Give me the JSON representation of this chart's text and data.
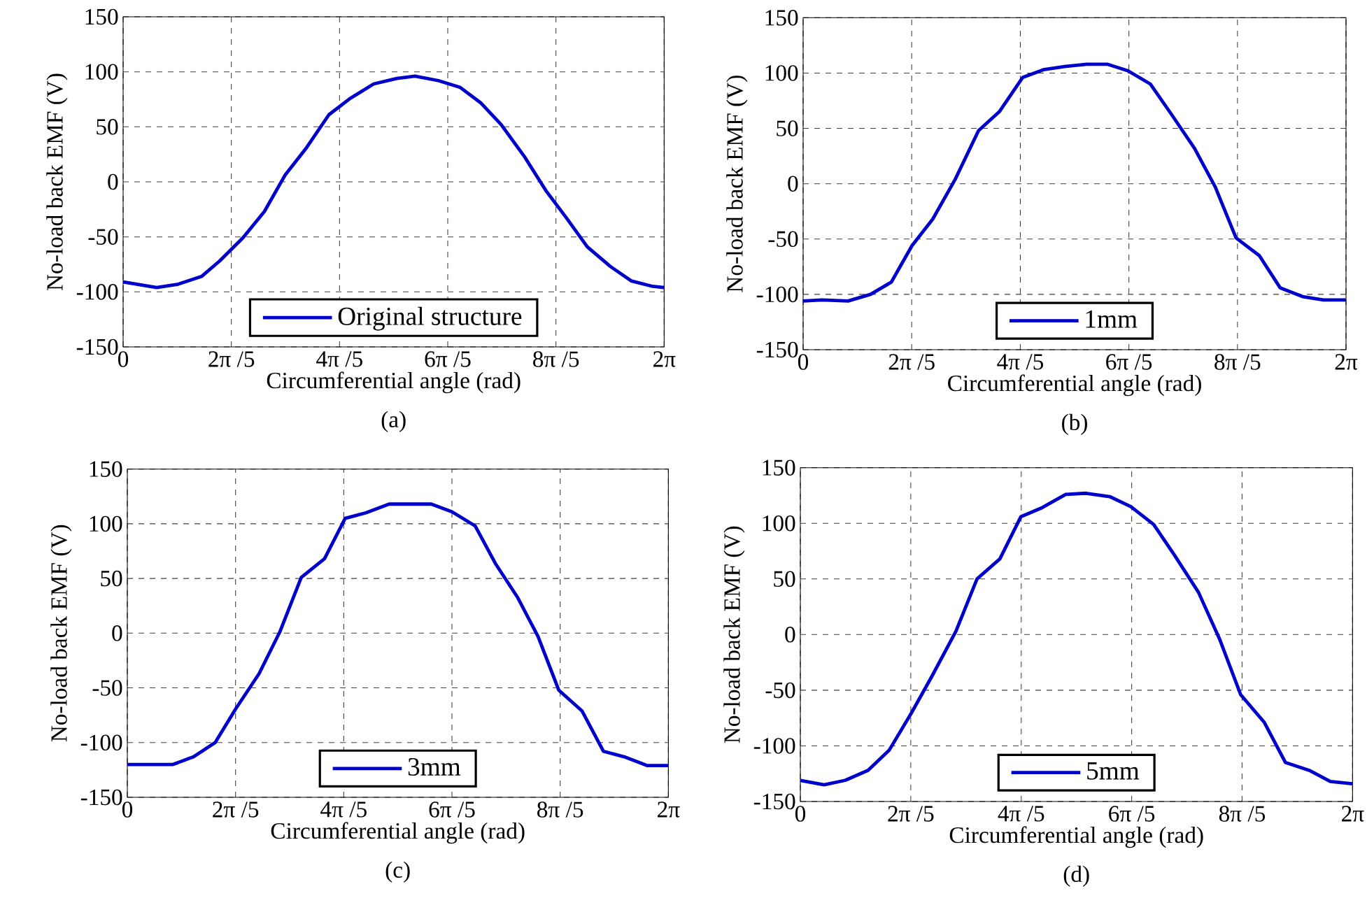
{
  "chart_data": [
    {
      "type": "line",
      "xlabel": "Circumferential angle (rad)",
      "ylabel": "No-load back EMF (V)",
      "annotations": [
        "(a)"
      ],
      "xlim": [
        0,
        6.2832
      ],
      "ylim": [
        -150,
        150
      ],
      "xticks": [
        0,
        {
          "value": 1.2566,
          "label": "2π /5"
        },
        {
          "value": 2.5133,
          "label": "4π /5"
        },
        {
          "value": 3.7699,
          "label": "6π /5"
        },
        {
          "value": 5.0265,
          "label": "8π /5"
        },
        {
          "value": 6.2832,
          "label": "2π"
        }
      ],
      "yticks": [
        -150,
        -100,
        -50,
        0,
        50,
        100,
        150
      ],
      "grid": true,
      "legend": "bottom",
      "x": [
        0,
        0.39,
        0.64,
        0.91,
        1.12,
        1.39,
        1.64,
        1.88,
        2.12,
        2.39,
        2.64,
        2.91,
        3.18,
        3.39,
        3.66,
        3.91,
        4.15,
        4.39,
        4.66,
        4.91,
        5.15,
        5.39,
        5.66,
        5.9,
        6.15,
        6.28
      ],
      "series": [
        {
          "name": "Original structure",
          "color": "#0000cc",
          "values": [
            -91,
            -96,
            -93,
            -86,
            -72,
            -51,
            -27,
            6,
            30,
            61,
            76,
            89,
            94,
            96,
            92,
            86,
            72,
            52,
            23,
            -8,
            -33,
            -59,
            -77,
            -90,
            -95,
            -96
          ]
        }
      ]
    },
    {
      "type": "line",
      "xlabel": "Circumferential angle (rad)",
      "ylabel": "No-load back EMF (V)",
      "annotations": [
        "(b)"
      ],
      "xlim": [
        0,
        6.2832
      ],
      "ylim": [
        -150,
        150
      ],
      "xticks": [
        0,
        {
          "value": 1.2566,
          "label": "2π /5"
        },
        {
          "value": 2.5133,
          "label": "4π /5"
        },
        {
          "value": 3.7699,
          "label": "6π /5"
        },
        {
          "value": 5.0265,
          "label": "8π /5"
        },
        {
          "value": 6.2832,
          "label": "2π"
        }
      ],
      "yticks": [
        -150,
        -100,
        -50,
        0,
        50,
        100,
        150
      ],
      "grid": true,
      "legend": "bottom",
      "x": [
        0,
        0.22,
        0.52,
        0.78,
        1.02,
        1.26,
        1.5,
        1.76,
        2.03,
        2.27,
        2.54,
        2.78,
        3.04,
        3.28,
        3.52,
        3.76,
        4.02,
        4.26,
        4.53,
        4.77,
        5.01,
        5.28,
        5.52,
        5.78,
        6.02,
        6.28
      ],
      "series": [
        {
          "name": "1mm",
          "color": "#0000cc",
          "values": [
            -106,
            -105,
            -106,
            -100,
            -89,
            -56,
            -32,
            4,
            48,
            65,
            96,
            103,
            106,
            108,
            108,
            102,
            90,
            63,
            32,
            -3,
            -49,
            -65,
            -94,
            -102,
            -105,
            -105
          ]
        }
      ]
    },
    {
      "type": "line",
      "xlabel": "Circumferential angle (rad)",
      "ylabel": "No-load back EMF (V)",
      "annotations": [
        "(c)"
      ],
      "xlim": [
        0,
        6.2832
      ],
      "ylim": [
        -150,
        150
      ],
      "xticks": [
        0,
        {
          "value": 1.2566,
          "label": "2π /5"
        },
        {
          "value": 2.5133,
          "label": "4π /5"
        },
        {
          "value": 3.7699,
          "label": "6π /5"
        },
        {
          "value": 5.0265,
          "label": "8π /5"
        },
        {
          "value": 6.2832,
          "label": "2π"
        }
      ],
      "yticks": [
        -150,
        -100,
        -50,
        0,
        50,
        100,
        150
      ],
      "grid": true,
      "legend": "bottom",
      "x": [
        0,
        0.53,
        0.77,
        1.02,
        1.26,
        1.53,
        1.77,
        2.02,
        2.29,
        2.53,
        2.77,
        3.04,
        3.29,
        3.53,
        3.77,
        4.04,
        4.28,
        4.53,
        4.77,
        5.01,
        5.28,
        5.53,
        5.77,
        6.04,
        6.28
      ],
      "series": [
        {
          "name": "3mm",
          "color": "#0000cc",
          "values": [
            -120,
            -120,
            -113,
            -100,
            -69,
            -37,
            1,
            51,
            68,
            105,
            110,
            118,
            118,
            118,
            111,
            98,
            63,
            33,
            -3,
            -52,
            -71,
            -108,
            -113,
            -121,
            -121
          ]
        }
      ]
    },
    {
      "type": "line",
      "xlabel": "Circumferential angle (rad)",
      "ylabel": "No-load back EMF (V)",
      "annotations": [
        "(d)"
      ],
      "xlim": [
        0,
        6.2832
      ],
      "ylim": [
        -150,
        150
      ],
      "xticks": [
        0,
        {
          "value": 1.2566,
          "label": "2π /5"
        },
        {
          "value": 2.5133,
          "label": "4π /5"
        },
        {
          "value": 3.7699,
          "label": "6π /5"
        },
        {
          "value": 5.0265,
          "label": "8π /5"
        },
        {
          "value": 6.2832,
          "label": "2π"
        }
      ],
      "yticks": [
        -150,
        -100,
        -50,
        0,
        50,
        100,
        150
      ],
      "grid": true,
      "legend": "bottom",
      "x": [
        0,
        0.27,
        0.51,
        0.77,
        1.01,
        1.26,
        1.5,
        1.77,
        2.01,
        2.27,
        2.51,
        2.75,
        3.02,
        3.25,
        3.52,
        3.76,
        4.02,
        4.26,
        4.53,
        4.77,
        5.01,
        5.28,
        5.52,
        5.79,
        6.03,
        6.28
      ],
      "series": [
        {
          "name": "5mm",
          "color": "#0000cc",
          "values": [
            -131,
            -135,
            -131,
            -122,
            -104,
            -71,
            -37,
            3,
            50,
            68,
            106,
            114,
            126,
            127,
            124,
            115,
            99,
            71,
            38,
            -4,
            -54,
            -79,
            -115,
            -122,
            -132,
            -134
          ]
        }
      ]
    }
  ]
}
